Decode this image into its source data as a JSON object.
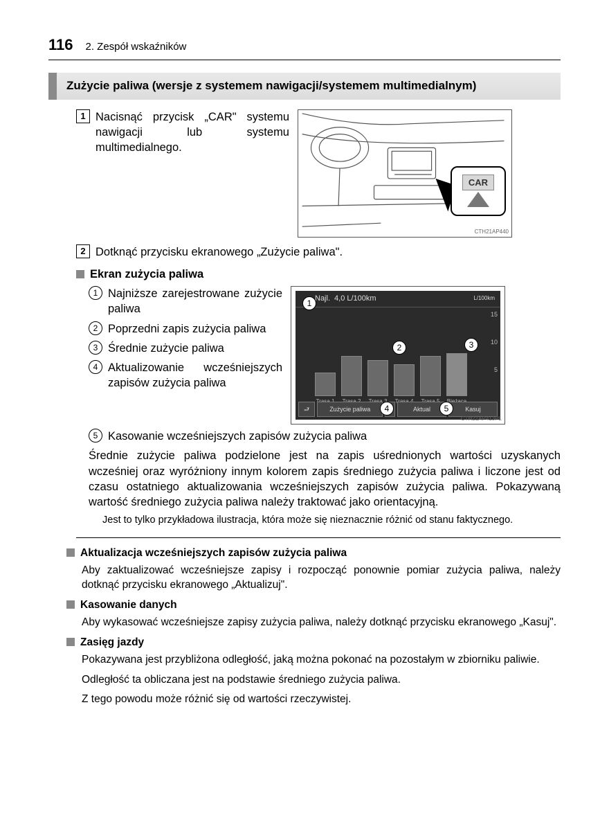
{
  "page": {
    "number": "116",
    "chapter": "2. Zespół wskaźników"
  },
  "title": "Zużycie paliwa (wersje z systemem nawigacji/systemem multimedialnym)",
  "step1": {
    "num": "1",
    "text": "Nacisnąć przycisk „CAR\" systemu nawigacji lub systemu multimedialnego.",
    "fig_label": "CTH21AP440",
    "car_button": "CAR"
  },
  "step2": {
    "num": "2",
    "text": "Dotknąć przycisku ekranowego „Zużycie paliwa\"."
  },
  "screen_section": {
    "heading": "Ekran zużycia paliwa",
    "items": [
      {
        "n": "1",
        "t": "Najniższe zarejestrowane zużycie paliwa"
      },
      {
        "n": "2",
        "t": "Poprzedni zapis zużycia paliwa"
      },
      {
        "n": "3",
        "t": "Średnie zużycie paliwa"
      },
      {
        "n": "4",
        "t": "Aktualizowanie wcześniejszych zapisów zużycia paliwa"
      },
      {
        "n": "5",
        "t": "Kasowanie wcześniejszych zapisów zużycia paliwa"
      }
    ],
    "fig_label": "CTH21AP413PL",
    "screen": {
      "top_label": "Najl.",
      "top_value": "4,0 L/100km",
      "unit": "L/100km",
      "ymax": "15",
      "ymid": "10",
      "ylow": "5",
      "bars": [
        {
          "h": 34,
          "lbl": "Trasa 1"
        },
        {
          "h": 58,
          "lbl": "Trasa 2"
        },
        {
          "h": 52,
          "lbl": "Trasa 3"
        },
        {
          "h": 46,
          "lbl": "Trasa 4"
        },
        {
          "h": 58,
          "lbl": "Trasa 5"
        },
        {
          "h": 62,
          "lbl": "Bieżąca"
        }
      ],
      "btn_fuel": "Zużycie paliwa",
      "btn_update": "Aktual",
      "btn_clear": "Kasuj"
    },
    "para": "Średnie zużycie paliwa podzielone jest na zapis uśrednionych wartości uzyskanych wcześniej oraz wyróżniony innym kolorem zapis średniego zużycia paliwa i liczone jest od czasu ostatniego aktualizowania wcześniejszych zapisów zużycia paliwa. Pokazywaną wartość średniego zużycia paliwa należy traktować jako orientacyjną.",
    "note": "Jest to tylko przykładowa ilustracja, która może się nieznacznie różnić od stanu faktycznego."
  },
  "sections": [
    {
      "h": "Aktualizacja wcześniejszych zapisów zużycia paliwa",
      "b": [
        "Aby zaktualizować wcześniejsze zapisy i rozpocząć ponownie pomiar zużycia paliwa, należy dotknąć przycisku ekranowego „Aktualizuj\"."
      ]
    },
    {
      "h": "Kasowanie danych",
      "b": [
        "Aby wykasować wcześniejsze zapisy zużycia paliwa, należy dotknąć przycisku ekranowego „Kasuj\"."
      ]
    },
    {
      "h": "Zasięg jazdy",
      "b": [
        "Pokazywana jest przybliżona odległość, jaką można pokonać na pozostałym w zbiorniku paliwie.",
        "Odległość ta obliczana jest na podstawie średniego zużycia paliwa.",
        "Z tego powodu może różnić się od wartości rzeczywistej."
      ]
    }
  ]
}
